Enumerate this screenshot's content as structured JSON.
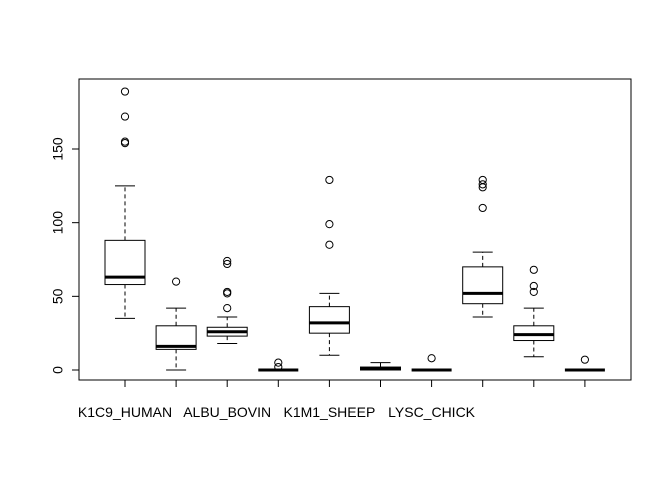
{
  "chart_data": {
    "type": "boxplot",
    "title": "",
    "xlabel": "",
    "ylabel": "",
    "ylim": [
      -7,
      197
    ],
    "y_ticks": [
      0,
      50,
      100,
      150
    ],
    "x_tick_labels": [
      "K1C9_HUMAN",
      "ALBU_BOVIN",
      "K1M1_SHEEP",
      "LYSC_CHICK"
    ],
    "x_tick_label_positions": [
      1,
      3,
      5,
      7
    ],
    "boxes": [
      {
        "position": 1,
        "min": 35,
        "q1": 58,
        "median": 63,
        "q3": 88,
        "max": 125,
        "outliers": [
          154,
          155,
          172,
          189
        ]
      },
      {
        "position": 2,
        "min": 0,
        "q1": 14,
        "median": 16,
        "q3": 30,
        "max": 42,
        "outliers": [
          60
        ]
      },
      {
        "position": 3,
        "min": 18,
        "q1": 23,
        "median": 26,
        "q3": 29,
        "max": 36,
        "outliers": [
          42,
          52,
          53,
          72,
          74
        ]
      },
      {
        "position": 4,
        "min": 0,
        "q1": 0,
        "median": 0,
        "q3": 0,
        "max": 0,
        "outliers": [
          2,
          5
        ]
      },
      {
        "position": 5,
        "min": 10,
        "q1": 25,
        "median": 32,
        "q3": 43,
        "max": 52,
        "outliers": [
          85,
          99,
          129
        ]
      },
      {
        "position": 6,
        "min": 0,
        "q1": 0,
        "median": 1,
        "q3": 2,
        "max": 5,
        "outliers": []
      },
      {
        "position": 7,
        "min": 0,
        "q1": 0,
        "median": 0,
        "q3": 0,
        "max": 0,
        "outliers": [
          8
        ]
      },
      {
        "position": 8,
        "min": 36,
        "q1": 45,
        "median": 52,
        "q3": 70,
        "max": 80,
        "outliers": [
          110,
          124,
          126,
          129
        ]
      },
      {
        "position": 9,
        "min": 9,
        "q1": 20,
        "median": 24,
        "q3": 30,
        "max": 42,
        "outliers": [
          53,
          57,
          68
        ]
      },
      {
        "position": 10,
        "min": 0,
        "q1": 0,
        "median": 0,
        "q3": 0,
        "max": 0,
        "outliers": [
          7
        ]
      }
    ]
  }
}
